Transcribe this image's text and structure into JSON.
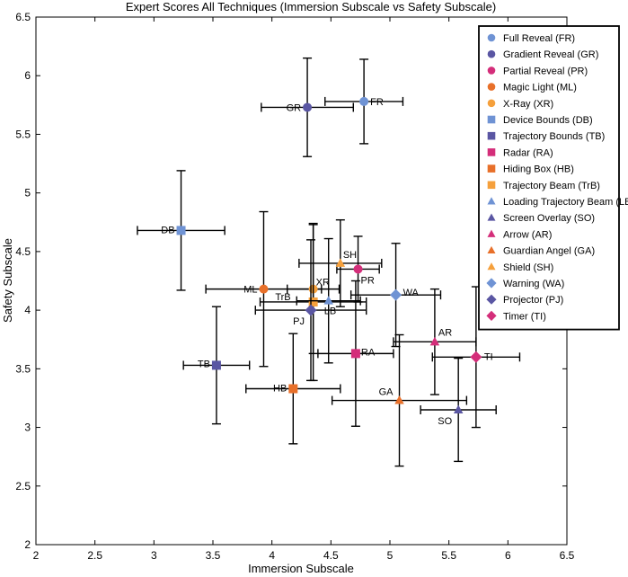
{
  "chart_data": {
    "type": "scatter",
    "title": "Expert Scores All Techniques (Immersion Subscale vs Safety Subscale)",
    "xlabel": "Immersion Subscale",
    "ylabel": "Safety Subscale",
    "xlim": [
      2,
      6.5
    ],
    "ylim": [
      2,
      6.5
    ],
    "xticks": [
      2,
      2.5,
      3,
      3.5,
      4,
      4.5,
      5,
      5.5,
      6,
      6.5
    ],
    "yticks": [
      2,
      2.5,
      3,
      3.5,
      4,
      4.5,
      5,
      5.5,
      6,
      6.5
    ],
    "grid": false,
    "legend_position": "top-right",
    "series": [
      {
        "name": "Full Reveal (FR)",
        "label": "FR",
        "marker": "circle",
        "color": "#6f93d4",
        "x": 4.78,
        "y": 5.78,
        "xerr": 0.33,
        "yerr": 0.36
      },
      {
        "name": "Gradient Reveal (GR)",
        "label": "GR",
        "marker": "circle",
        "color": "#5a56a3",
        "x": 4.3,
        "y": 5.73,
        "xerr": 0.39,
        "yerr": 0.42
      },
      {
        "name": "Partial Reveal (PR)",
        "label": "PR",
        "marker": "circle",
        "color": "#d42e7a",
        "x": 4.73,
        "y": 4.35,
        "xerr": 0.18,
        "yerr": 0.28
      },
      {
        "name": "Magic Light (ML)",
        "label": "ML",
        "marker": "circle",
        "color": "#e8702a",
        "x": 3.93,
        "y": 4.18,
        "xerr": 0.49,
        "yerr": 0.66
      },
      {
        "name": "X-Ray (XR)",
        "label": "XR",
        "marker": "circle",
        "color": "#f5a03c",
        "x": 4.35,
        "y": 4.18,
        "xerr": 0.22,
        "yerr": 0.55
      },
      {
        "name": "Device Bounds (DB)",
        "label": "DB",
        "marker": "square",
        "color": "#6f93d4",
        "x": 3.23,
        "y": 4.68,
        "xerr": 0.37,
        "yerr": 0.51
      },
      {
        "name": "Trajectory Bounds (TB)",
        "label": "TB",
        "marker": "square",
        "color": "#5a56a3",
        "x": 3.53,
        "y": 3.53,
        "xerr": 0.28,
        "yerr": 0.5
      },
      {
        "name": "Radar (RA)",
        "label": "RA",
        "marker": "square",
        "color": "#d42e7a",
        "x": 4.71,
        "y": 3.63,
        "xerr": 0.32,
        "yerr": 0.62
      },
      {
        "name": "Hiding Box (HB)",
        "label": "HB",
        "marker": "square",
        "color": "#e8702a",
        "x": 4.18,
        "y": 3.33,
        "xerr": 0.4,
        "yerr": 0.47
      },
      {
        "name": "Trajectory Beam (TrB)",
        "label": "TrB",
        "marker": "square",
        "color": "#f5a03c",
        "x": 4.35,
        "y": 4.07,
        "xerr": 0.45,
        "yerr": 0.67
      },
      {
        "name": "Loading Trajectory Beam (LB)",
        "label": "LB",
        "marker": "triangle",
        "color": "#6f93d4",
        "x": 4.48,
        "y": 4.08,
        "xerr": 0.27,
        "yerr": 0.53
      },
      {
        "name": "Screen Overlay (SO)",
        "label": "SO",
        "marker": "triangle",
        "color": "#5a56a3",
        "x": 5.58,
        "y": 3.15,
        "xerr": 0.32,
        "yerr": 0.44
      },
      {
        "name": "Arrow (AR)",
        "label": "AR",
        "marker": "triangle",
        "color": "#d42e7a",
        "x": 5.38,
        "y": 3.73,
        "xerr": 0.35,
        "yerr": 0.45
      },
      {
        "name": "Guardian Angel (GA)",
        "label": "GA",
        "marker": "triangle",
        "color": "#e8702a",
        "x": 5.08,
        "y": 3.23,
        "xerr": 0.57,
        "yerr": 0.56
      },
      {
        "name": "Shield (SH)",
        "label": "SH",
        "marker": "triangle",
        "color": "#f5a03c",
        "x": 4.58,
        "y": 4.4,
        "xerr": 0.35,
        "yerr": 0.37
      },
      {
        "name": "Warning (WA)",
        "label": "WA",
        "marker": "diamond",
        "color": "#6f93d4",
        "x": 5.05,
        "y": 4.13,
        "xerr": 0.38,
        "yerr": 0.44
      },
      {
        "name": "Projector (PJ)",
        "label": "PJ",
        "marker": "diamond",
        "color": "#5a56a3",
        "x": 4.33,
        "y": 4.0,
        "xerr": 0.47,
        "yerr": 0.6
      },
      {
        "name": "Timer (TI)",
        "label": "TI",
        "marker": "diamond",
        "color": "#d42e7a",
        "x": 5.73,
        "y": 3.6,
        "xerr": 0.37,
        "yerr": 0.6
      }
    ]
  }
}
